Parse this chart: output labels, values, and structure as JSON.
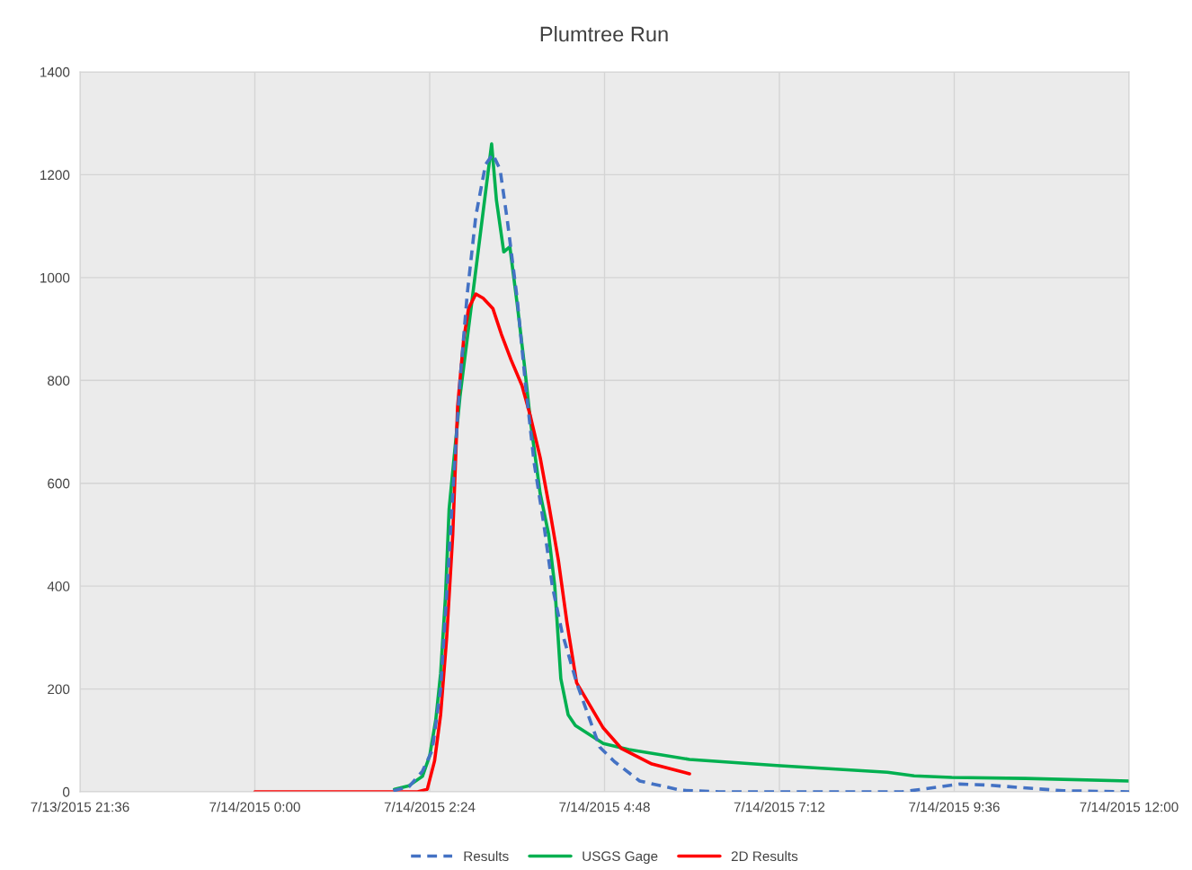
{
  "chart_data": {
    "type": "line",
    "title": "Plumtree Run",
    "xlim": [
      "2015-07-13T21:36",
      "2015-07-14T12:00"
    ],
    "xticks": [
      {
        "value": "2015-07-13T21:36",
        "label": "7/13/2015 21:36"
      },
      {
        "value": "2015-07-14T00:00",
        "label": "7/14/2015 0:00"
      },
      {
        "value": "2015-07-14T02:24",
        "label": "7/14/2015 2:24"
      },
      {
        "value": "2015-07-14T04:48",
        "label": "7/14/2015 4:48"
      },
      {
        "value": "2015-07-14T07:12",
        "label": "7/14/2015 7:12"
      },
      {
        "value": "2015-07-14T09:36",
        "label": "7/14/2015 9:36"
      },
      {
        "value": "2015-07-14T12:00",
        "label": "7/14/2015 12:00"
      }
    ],
    "ylim": [
      0,
      1400
    ],
    "yticks": [
      0,
      200,
      400,
      600,
      800,
      1000,
      1200,
      1400
    ],
    "grid": true,
    "legend": "bottom",
    "series": [
      {
        "name": "Results",
        "color": "#4472c4",
        "line_style": "dashed",
        "x": [
          "2015-07-14T01:54",
          "2015-07-14T02:07",
          "2015-07-14T02:18",
          "2015-07-14T02:26",
          "2015-07-14T02:33",
          "2015-07-14T02:39",
          "2015-07-14T02:44",
          "2015-07-14T02:49",
          "2015-07-14T02:55",
          "2015-07-14T03:02",
          "2015-07-14T03:10",
          "2015-07-14T03:16",
          "2015-07-14T03:22",
          "2015-07-14T03:28",
          "2015-07-14T03:36",
          "2015-07-14T03:43",
          "2015-07-14T03:50",
          "2015-07-14T03:58",
          "2015-07-14T04:05",
          "2015-07-14T04:13",
          "2015-07-14T04:25",
          "2015-07-14T04:44",
          "2015-07-14T04:56",
          "2015-07-14T05:17",
          "2015-07-14T05:51",
          "2015-07-14T06:22",
          "2015-07-14T08:53",
          "2015-07-14T09:13",
          "2015-07-14T09:40",
          "2015-07-14T10:04",
          "2015-07-14T11:06",
          "2015-07-14T12:00"
        ],
        "values": [
          2,
          10,
          40,
          80,
          200,
          420,
          620,
          800,
          970,
          1120,
          1220,
          1240,
          1210,
          1110,
          960,
          790,
          640,
          520,
          400,
          310,
          212,
          87,
          59,
          21,
          3,
          0,
          0,
          6,
          15,
          13,
          2,
          0
        ]
      },
      {
        "name": "USGS Gage",
        "color": "#00b050",
        "line_style": "solid",
        "x": [
          "2015-07-14T01:55",
          "2015-07-14T02:07",
          "2015-07-14T02:18",
          "2015-07-14T02:24",
          "2015-07-14T02:29",
          "2015-07-14T02:33",
          "2015-07-14T02:37",
          "2015-07-14T02:40",
          "2015-07-14T02:49",
          "2015-07-14T03:15",
          "2015-07-14T03:19",
          "2015-07-14T03:25",
          "2015-07-14T03:30",
          "2015-07-14T03:36",
          "2015-07-14T03:42",
          "2015-07-14T03:47",
          "2015-07-14T03:55",
          "2015-07-14T04:02",
          "2015-07-14T04:07",
          "2015-07-14T04:12",
          "2015-07-14T04:18",
          "2015-07-14T04:24",
          "2015-07-14T04:47",
          "2015-07-14T05:08",
          "2015-07-14T05:58",
          "2015-07-14T07:10",
          "2015-07-14T08:41",
          "2015-07-14T09:03",
          "2015-07-14T09:34",
          "2015-07-14T10:35",
          "2015-07-14T12:00"
        ],
        "values": [
          5,
          12,
          30,
          70,
          140,
          230,
          380,
          550,
          770,
          1260,
          1150,
          1050,
          1060,
          950,
          830,
          720,
          580,
          500,
          400,
          220,
          150,
          129,
          94,
          82,
          63,
          51,
          38,
          31,
          28,
          26,
          21
        ]
      },
      {
        "name": "2D Results",
        "color": "#ff0000",
        "line_style": "solid",
        "x": [
          "2015-07-14T00:00",
          "2015-07-14T02:14",
          "2015-07-14T02:22",
          "2015-07-14T02:28",
          "2015-07-14T02:33",
          "2015-07-14T02:38",
          "2015-07-14T02:43",
          "2015-07-14T02:47",
          "2015-07-14T02:52",
          "2015-07-14T02:56",
          "2015-07-14T03:02",
          "2015-07-14T03:08",
          "2015-07-14T03:16",
          "2015-07-14T03:23",
          "2015-07-14T03:31",
          "2015-07-14T03:40",
          "2015-07-14T03:47",
          "2015-07-14T03:55",
          "2015-07-14T04:02",
          "2015-07-14T04:10",
          "2015-07-14T04:17",
          "2015-07-14T04:25",
          "2015-07-14T04:47",
          "2015-07-14T05:02",
          "2015-07-14T05:27",
          "2015-07-14T05:58"
        ],
        "values": [
          0,
          0,
          5,
          60,
          150,
          300,
          500,
          750,
          880,
          940,
          968,
          960,
          940,
          890,
          840,
          790,
          730,
          650,
          560,
          450,
          330,
          212,
          124,
          84,
          54,
          35
        ]
      }
    ]
  }
}
